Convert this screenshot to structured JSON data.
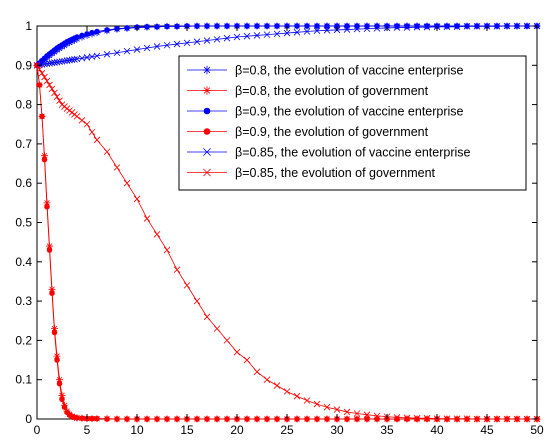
{
  "chart_data": {
    "type": "line",
    "title": "",
    "xlabel": "",
    "ylabel": "",
    "xlim": [
      0,
      50
    ],
    "ylim": [
      0,
      1
    ],
    "xticks": [
      "0",
      "5",
      "10",
      "15",
      "20",
      "25",
      "30",
      "35",
      "40",
      "45",
      "50"
    ],
    "yticks": [
      "0",
      "0.1",
      "0.2",
      "0.3",
      "0.4",
      "0.5",
      "0.6",
      "0.7",
      "0.8",
      "0.9",
      "1"
    ],
    "grid": false,
    "legend_position": "top-right",
    "x": [
      0,
      0.25,
      0.5,
      0.75,
      1,
      1.25,
      1.5,
      1.75,
      2,
      2.25,
      2.5,
      2.75,
      3,
      3.25,
      3.5,
      3.75,
      4,
      4.5,
      5,
      5.5,
      6,
      7,
      8,
      9,
      10,
      11,
      12,
      13,
      14,
      15,
      16,
      17,
      18,
      19,
      20,
      21,
      22,
      23,
      24,
      25,
      26,
      27,
      28,
      29,
      30,
      31,
      32,
      33,
      34,
      35,
      36,
      37,
      38,
      39,
      40,
      41,
      42,
      43,
      44,
      45,
      46,
      47,
      48,
      49,
      50
    ],
    "series": [
      {
        "name": "β=0.8, the evolution of vaccine enterprise",
        "color": "#0000ff",
        "marker": "star",
        "values": [
          0.9,
          0.905,
          0.91,
          0.915,
          0.92,
          0.925,
          0.93,
          0.934,
          0.939,
          0.943,
          0.947,
          0.951,
          0.955,
          0.958,
          0.961,
          0.964,
          0.967,
          0.972,
          0.976,
          0.98,
          0.983,
          0.988,
          0.992,
          0.994,
          0.996,
          0.997,
          0.998,
          0.999,
          0.999,
          0.999,
          1,
          1,
          1,
          1,
          1,
          1,
          1,
          1,
          1,
          1,
          1,
          1,
          1,
          1,
          1,
          1,
          1,
          1,
          1,
          1,
          1,
          1,
          1,
          1,
          1,
          1,
          1,
          1,
          1,
          1,
          1,
          1,
          1,
          1,
          1
        ]
      },
      {
        "name": "β=0.8, the evolution of government",
        "color": "#ff0000",
        "marker": "star",
        "values": [
          0.9,
          0.85,
          0.77,
          0.67,
          0.55,
          0.44,
          0.33,
          0.23,
          0.16,
          0.1,
          0.06,
          0.035,
          0.02,
          0.012,
          0.007,
          0.004,
          0.003,
          0.002,
          0.001,
          0.001,
          0.001,
          0.001,
          0,
          0,
          0,
          0,
          0,
          0,
          0,
          0,
          0,
          0,
          0,
          0,
          0,
          0,
          0,
          0,
          0,
          0,
          0,
          0,
          0,
          0,
          0,
          0,
          0,
          0,
          0,
          0,
          0,
          0,
          0,
          0,
          0,
          0,
          0,
          0,
          0,
          0,
          0,
          0,
          0,
          0,
          0
        ]
      },
      {
        "name": "β=0.9, the evolution of vaccine enterprise",
        "color": "#0000ff",
        "marker": "dot",
        "values": [
          0.9,
          0.906,
          0.912,
          0.918,
          0.924,
          0.929,
          0.934,
          0.939,
          0.944,
          0.948,
          0.952,
          0.956,
          0.96,
          0.963,
          0.966,
          0.969,
          0.972,
          0.976,
          0.98,
          0.983,
          0.986,
          0.99,
          0.993,
          0.995,
          0.997,
          0.998,
          0.998,
          0.999,
          0.999,
          1,
          1,
          1,
          1,
          1,
          1,
          1,
          1,
          1,
          1,
          1,
          1,
          1,
          1,
          1,
          1,
          1,
          1,
          1,
          1,
          1,
          1,
          1,
          1,
          1,
          1,
          1,
          1,
          1,
          1,
          1,
          1,
          1,
          1,
          1,
          1
        ]
      },
      {
        "name": "β=0.9, the evolution of government",
        "color": "#ff0000",
        "marker": "dot",
        "values": [
          0.9,
          0.85,
          0.77,
          0.66,
          0.54,
          0.43,
          0.32,
          0.22,
          0.15,
          0.09,
          0.05,
          0.03,
          0.017,
          0.01,
          0.006,
          0.004,
          0.003,
          0.002,
          0.001,
          0.001,
          0.001,
          0,
          0,
          0,
          0,
          0,
          0,
          0,
          0,
          0,
          0,
          0,
          0,
          0,
          0,
          0,
          0,
          0,
          0,
          0,
          0,
          0,
          0,
          0,
          0,
          0,
          0,
          0,
          0,
          0,
          0,
          0,
          0,
          0,
          0,
          0,
          0,
          0,
          0,
          0,
          0,
          0,
          0,
          0,
          0
        ]
      },
      {
        "name": "β=0.85, the evolution of vaccine enterprise",
        "color": "#0000ff",
        "marker": "x",
        "values": [
          0.9,
          0.901,
          0.902,
          0.903,
          0.904,
          0.905,
          0.906,
          0.907,
          0.908,
          0.909,
          0.91,
          0.911,
          0.912,
          0.913,
          0.914,
          0.915,
          0.916,
          0.918,
          0.92,
          0.922,
          0.924,
          0.928,
          0.932,
          0.936,
          0.94,
          0.944,
          0.948,
          0.951,
          0.954,
          0.957,
          0.96,
          0.963,
          0.966,
          0.969,
          0.972,
          0.974,
          0.976,
          0.978,
          0.98,
          0.982,
          0.984,
          0.986,
          0.988,
          0.989,
          0.99,
          0.991,
          0.992,
          0.993,
          0.994,
          0.995,
          0.996,
          0.996,
          0.997,
          0.997,
          0.998,
          0.998,
          0.998,
          0.999,
          0.999,
          0.999,
          0.999,
          1,
          1,
          1,
          1
        ]
      },
      {
        "name": "β=0.85, the evolution of government",
        "color": "#ff0000",
        "marker": "x",
        "values": [
          0.9,
          0.89,
          0.88,
          0.87,
          0.86,
          0.85,
          0.84,
          0.83,
          0.82,
          0.81,
          0.8,
          0.795,
          0.79,
          0.785,
          0.78,
          0.775,
          0.77,
          0.76,
          0.75,
          0.73,
          0.71,
          0.68,
          0.64,
          0.6,
          0.56,
          0.51,
          0.47,
          0.43,
          0.38,
          0.34,
          0.3,
          0.26,
          0.23,
          0.2,
          0.17,
          0.15,
          0.12,
          0.1,
          0.085,
          0.07,
          0.058,
          0.047,
          0.038,
          0.03,
          0.024,
          0.018,
          0.014,
          0.011,
          0.008,
          0.006,
          0.004,
          0.003,
          0.002,
          0.002,
          0.001,
          0.001,
          0.001,
          0.001,
          0,
          0,
          0,
          0,
          0,
          0,
          0
        ]
      }
    ]
  },
  "legend_icons": [
    "star-marker-icon",
    "star-marker-icon",
    "dot-marker-icon",
    "dot-marker-icon",
    "x-marker-icon",
    "x-marker-icon"
  ]
}
